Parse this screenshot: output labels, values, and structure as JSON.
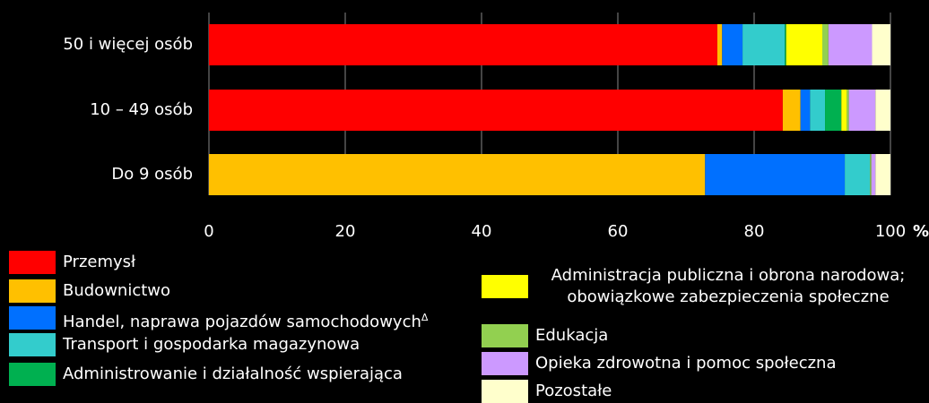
{
  "chart_data": {
    "type": "stacked_bar_horizontal",
    "categories": [
      "50 i więcej osób",
      "10 – 49 osób",
      "Do 9 osób"
    ],
    "series": [
      {
        "name": "Przemysł",
        "color": "#ff0000",
        "values": [
          74.6,
          84.2,
          0
        ]
      },
      {
        "name": "Budownictwo",
        "color": "#ffc000",
        "values": [
          0.7,
          2.6,
          72.8
        ]
      },
      {
        "name": "Handel, naprawa pojazdów samochodowych",
        "superscript": "Δ",
        "color": "#0070ff",
        "values": [
          3.0,
          1.4,
          20.5
        ]
      },
      {
        "name": "Transport i gospodarka magazynowa",
        "color": "#33cccc",
        "values": [
          6.2,
          2.2,
          3.7
        ]
      },
      {
        "name": "Administrowanie i działalność wspierająca",
        "color": "#00b050",
        "values": [
          0.2,
          2.4,
          0
        ]
      },
      {
        "name": "Administracja publiczna i obrona narodowa; obowiązkowe zabezpieczenia społeczne",
        "color": "#ffff00",
        "values": [
          5.3,
          0.8,
          0
        ]
      },
      {
        "name": "Edukacja",
        "color": "#92d050",
        "values": [
          0.9,
          0.3,
          0.2
        ]
      },
      {
        "name": "Opieka zdrowotna i pomoc społeczna",
        "color": "#cc99ff",
        "values": [
          6.4,
          3.9,
          0.6
        ]
      },
      {
        "name": "Pozostałe",
        "color": "#ffffcc",
        "values": [
          2.7,
          2.2,
          2.2
        ]
      }
    ],
    "xlim": [
      0,
      100
    ],
    "xticks": [
      0,
      20,
      40,
      60,
      80,
      100
    ],
    "xlabel": "%",
    "grid": true
  }
}
